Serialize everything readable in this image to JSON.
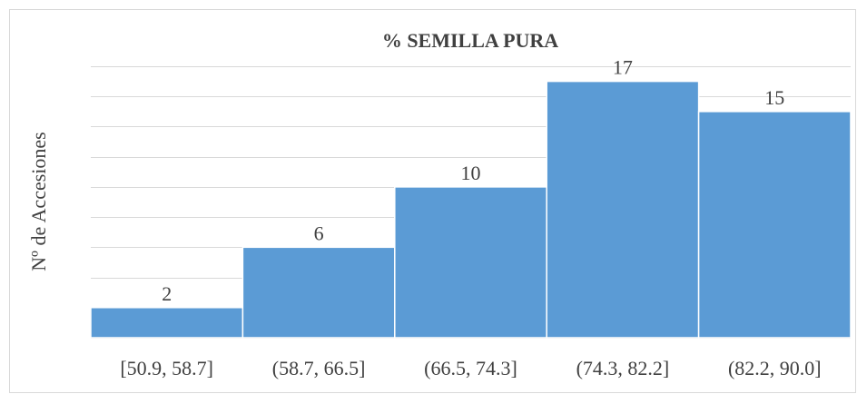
{
  "chart_data": {
    "type": "bar",
    "title": "% SEMILLA PURA",
    "ylabel": "Nº de Accesiones",
    "categories": [
      "[50.9, 58.7]",
      "(58.7, 66.5]",
      "(66.5, 74.3]",
      "(74.3, 82.2]",
      "(82.2, 90.0]"
    ],
    "values": [
      2,
      6,
      10,
      17,
      15
    ],
    "color": "#5b9bd5",
    "ylim": [
      0,
      18
    ],
    "yticks": [
      0,
      2,
      4,
      6,
      8,
      10,
      12,
      14,
      16,
      18
    ],
    "grid": true
  }
}
